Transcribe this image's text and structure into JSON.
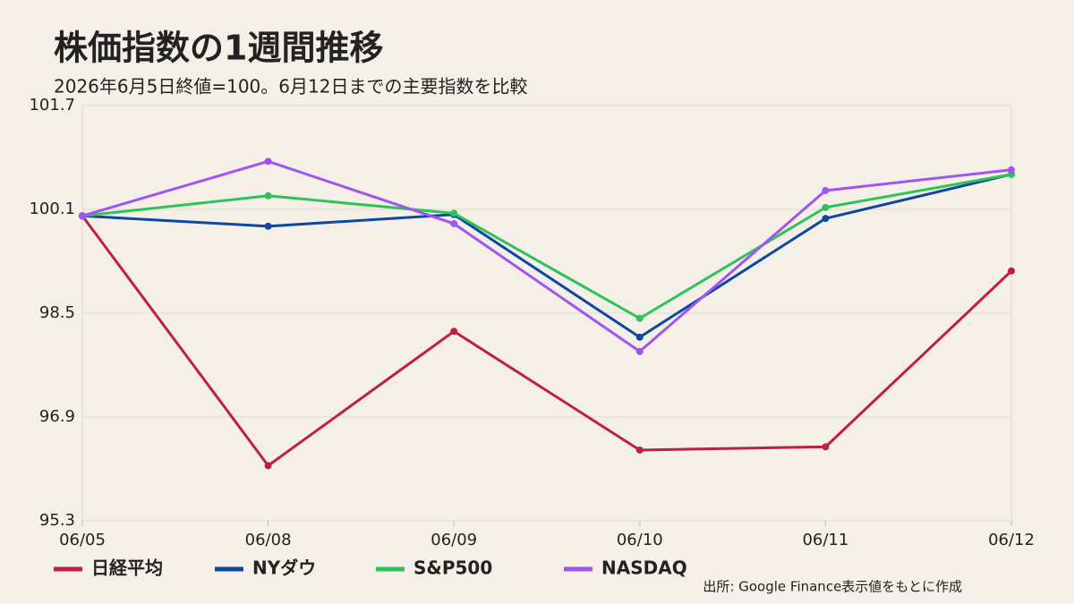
{
  "chart_data": {
    "type": "line",
    "title": "株価指数の1週間推移",
    "subtitle": "2026年6月5日終値=100。6月12日までの主要指数を比較",
    "categories": [
      "06/05",
      "06/08",
      "06/09",
      "06/10",
      "06/11",
      "06/12"
    ],
    "series": [
      {
        "name": "日経平均",
        "color": "#c0203f",
        "values": [
          100.0,
          96.15,
          98.22,
          96.39,
          96.44,
          99.15
        ]
      },
      {
        "name": "NYダウ",
        "color": "#0d47a1",
        "values": [
          100.0,
          99.84,
          100.02,
          98.13,
          99.96,
          100.64
        ]
      },
      {
        "name": "S&P500",
        "color": "#2ec25a",
        "values": [
          100.0,
          100.31,
          100.04,
          98.42,
          100.13,
          100.64
        ]
      },
      {
        "name": "NASDAQ",
        "color": "#a155f0",
        "values": [
          100.0,
          100.84,
          99.88,
          97.91,
          100.39,
          100.71
        ]
      }
    ],
    "ylim": [
      95.3,
      101.7
    ],
    "yticks": [
      95.3,
      96.9,
      98.5,
      100.1,
      101.7
    ],
    "grid": true,
    "legend": "bottom",
    "source": "出所: Google Finance表示値をもとに作成"
  }
}
